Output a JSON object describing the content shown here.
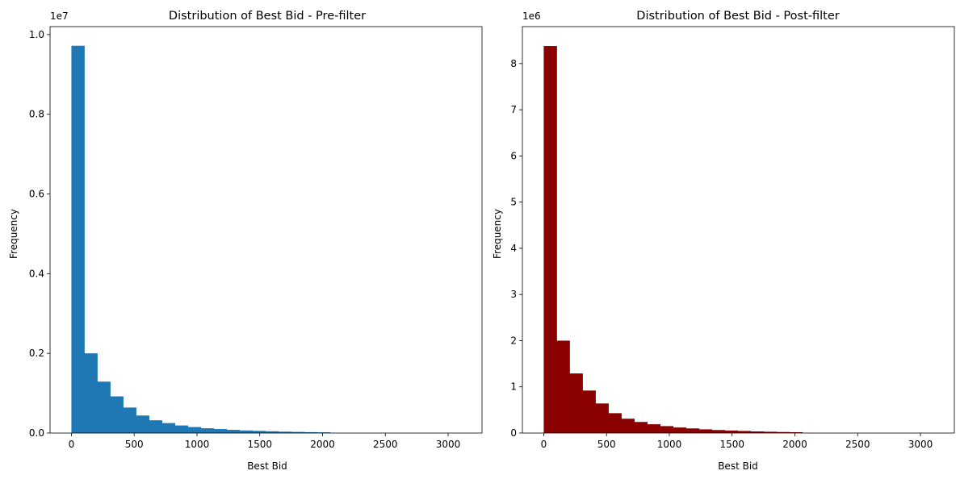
{
  "chart_data": [
    {
      "type": "bar",
      "title": "Distribution of Best Bid - Pre-filter",
      "xlabel": "Best Bid",
      "ylabel": "Frequency",
      "color": "#1f77b4",
      "offset_label": "1e7",
      "xlim": [
        -170,
        3270
      ],
      "ylim": [
        0,
        10200000
      ],
      "xticks": [
        0,
        500,
        1000,
        1500,
        2000,
        2500,
        3000
      ],
      "xtick_labels": [
        "0",
        "500",
        "1000",
        "1500",
        "2000",
        "2500",
        "3000"
      ],
      "yticks": [
        0,
        2000000,
        4000000,
        6000000,
        8000000,
        10000000
      ],
      "ytick_labels": [
        "0.0",
        "0.2",
        "0.4",
        "0.6",
        "0.8",
        "1.0"
      ],
      "bin_width": 103,
      "bin_edges_start": 0,
      "values": [
        9720000,
        2000000,
        1290000,
        920000,
        640000,
        440000,
        320000,
        250000,
        190000,
        150000,
        120000,
        100000,
        80000,
        65000,
        55000,
        45000,
        35000,
        28000,
        22000,
        18000,
        0,
        0,
        0,
        0,
        0,
        0,
        0,
        0,
        0,
        0
      ]
    },
    {
      "type": "bar",
      "title": "Distribution of Best Bid - Post-filter",
      "xlabel": "Best Bid",
      "ylabel": "Frequency",
      "color": "#8b0000",
      "offset_label": "1e6",
      "xlim": [
        -170,
        3270
      ],
      "ylim": [
        0,
        8800000
      ],
      "xticks": [
        0,
        500,
        1000,
        1500,
        2000,
        2500,
        3000
      ],
      "xtick_labels": [
        "0",
        "500",
        "1000",
        "1500",
        "2000",
        "2500",
        "3000"
      ],
      "yticks": [
        0,
        1000000,
        2000000,
        3000000,
        4000000,
        5000000,
        6000000,
        7000000,
        8000000
      ],
      "ytick_labels": [
        "0",
        "1",
        "2",
        "3",
        "4",
        "5",
        "6",
        "7",
        "8"
      ],
      "bin_width": 103,
      "bin_edges_start": 0,
      "values": [
        8380000,
        2000000,
        1290000,
        920000,
        640000,
        430000,
        310000,
        240000,
        190000,
        150000,
        120000,
        100000,
        80000,
        65000,
        55000,
        45000,
        35000,
        28000,
        22000,
        18000,
        0,
        0,
        0,
        0,
        0,
        0,
        0,
        0,
        0,
        0
      ]
    }
  ]
}
